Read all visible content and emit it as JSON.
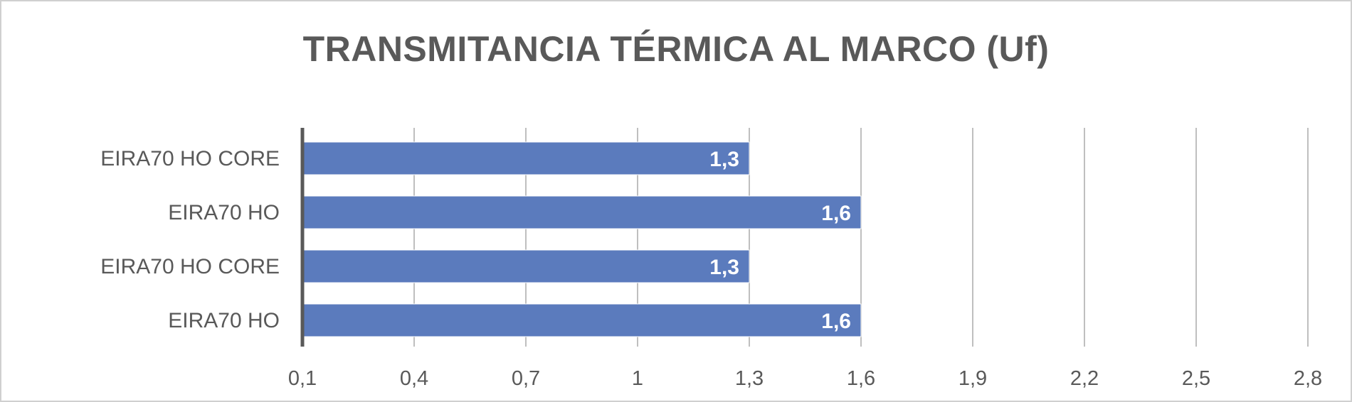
{
  "chart_data": {
    "type": "bar",
    "orientation": "horizontal",
    "title": "TRANSMITANCIA TÉRMICA AL MARCO (Uf)",
    "categories": [
      "EIRA70 HO CORE",
      "EIRA70 HO",
      "EIRA70 HO CORE",
      "EIRA70 HO"
    ],
    "values": [
      1.3,
      1.6,
      1.3,
      1.6
    ],
    "value_labels": [
      "1,3",
      "1,6",
      "1,3",
      "1,6"
    ],
    "xticks": [
      0.1,
      0.4,
      0.7,
      1.0,
      1.3,
      1.6,
      1.9,
      2.2,
      2.5,
      2.8
    ],
    "xtick_labels": [
      "0,1",
      "0,4",
      "0,7",
      "1",
      "1,3",
      "1,6",
      "1,9",
      "2,2",
      "2,5",
      "2,8"
    ],
    "xlim": [
      0.1,
      2.8
    ],
    "xlabel": "",
    "ylabel": "",
    "grid": "vertical",
    "legend": "none",
    "colors": {
      "bar": "#5b7bbd",
      "grid": "#bfbfbf",
      "axis": "#595959",
      "text": "#595959",
      "data_label": "#ffffff"
    }
  }
}
